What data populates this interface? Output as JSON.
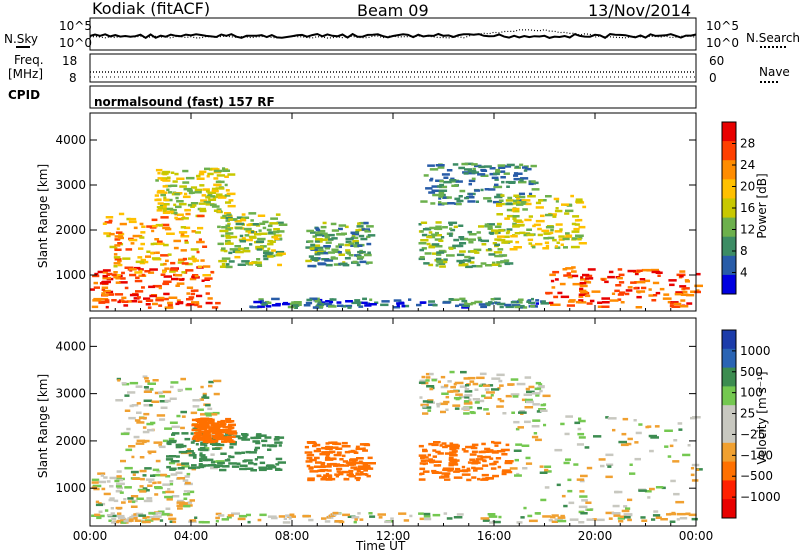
{
  "header": {
    "station": "Kodiak (fitACF)",
    "beam": "Beam 09",
    "date": "13/Nov/2014"
  },
  "panel_labels": {
    "nsky": "N.Sky",
    "nsky_ticks": [
      "10^5",
      "10^0"
    ],
    "nsearch": "N.Search",
    "nsearch_ticks": [
      "10^5",
      "10^0"
    ],
    "freq_line1": "Freq.",
    "freq_line2": "[MHz]",
    "freq_ticks": [
      "18",
      "8"
    ],
    "nave": "Nave",
    "nave_ticks": [
      "60",
      "0"
    ],
    "cpid": "CPID",
    "cpid_text": "normalsound (fast) 157 RF"
  },
  "power_colorbar": {
    "label": "Power [dB]",
    "ticks": [
      "28",
      "24",
      "20",
      "16",
      "12",
      "8",
      "4"
    ],
    "colors": [
      "#e80000",
      "#ff4000",
      "#ff8c00",
      "#ffc000",
      "#c8c800",
      "#6cb04c",
      "#3c8c64",
      "#285ca8",
      "#0000e0"
    ]
  },
  "velocity_colorbar": {
    "label": "Velocity [m s⁻¹]",
    "ticks": [
      "1000",
      "500",
      "100",
      "25",
      "−25",
      "−100",
      "−500",
      "−1000"
    ],
    "colors": [
      "#1c3caa",
      "#2a64b4",
      "#3c8c50",
      "#74c850",
      "#c8c8c0",
      "#c8c8c0",
      "#f0a030",
      "#ff7000",
      "#ff2000",
      "#e80000"
    ]
  },
  "chart_data": [
    {
      "type": "heatmap",
      "title": "Power",
      "xlabel": "Time UT",
      "ylabel": "Slant Range [km]",
      "x_ticks": [
        "00:00",
        "04:00",
        "08:00",
        "12:00",
        "16:00",
        "20:00",
        "00:00"
      ],
      "xlim_hours": [
        0,
        24
      ],
      "y_ticks": [
        "1000",
        "2000",
        "3000",
        "4000"
      ],
      "ylim": [
        200,
        4600
      ],
      "value_unit": "dB",
      "colorbar_range": [
        0,
        32
      ],
      "regions": [
        {
          "t_start": 0.0,
          "t_end": 5.0,
          "r_start": 300,
          "r_end": 1200,
          "power": 28
        },
        {
          "t_start": 0.5,
          "t_end": 4.5,
          "r_start": 1000,
          "r_end": 2400,
          "power": 22
        },
        {
          "t_start": 2.5,
          "t_end": 5.5,
          "r_start": 2400,
          "r_end": 3400,
          "power": 16
        },
        {
          "t_start": 5.0,
          "t_end": 7.5,
          "r_start": 1200,
          "r_end": 2400,
          "power": 14
        },
        {
          "t_start": 8.5,
          "t_end": 11.0,
          "r_start": 1200,
          "r_end": 2200,
          "power": 10
        },
        {
          "t_start": 13.0,
          "t_end": 17.5,
          "r_start": 2600,
          "r_end": 3500,
          "power": 8
        },
        {
          "t_start": 13.0,
          "t_end": 16.5,
          "r_start": 1200,
          "r_end": 2200,
          "power": 12
        },
        {
          "t_start": 16.0,
          "t_end": 19.5,
          "r_start": 1600,
          "r_end": 2800,
          "power": 16
        },
        {
          "t_start": 18.0,
          "t_end": 24.0,
          "r_start": 300,
          "r_end": 1200,
          "power": 28
        },
        {
          "t_start": 6.0,
          "t_end": 18.0,
          "r_start": 300,
          "r_end": 500,
          "power": 6
        }
      ]
    },
    {
      "type": "heatmap",
      "title": "Velocity",
      "xlabel": "Time UT",
      "ylabel": "Slant Range [km]",
      "x_ticks": [
        "00:00",
        "04:00",
        "08:00",
        "12:00",
        "16:00",
        "20:00",
        "00:00"
      ],
      "xlim_hours": [
        0,
        24
      ],
      "y_ticks": [
        "1000",
        "2000",
        "3000",
        "4000"
      ],
      "ylim": [
        200,
        4600
      ],
      "value_unit": "m s-1",
      "regions": [
        {
          "t_start": 0.0,
          "t_end": 4.0,
          "r_start": 300,
          "r_end": 1400,
          "velocity": 0
        },
        {
          "t_start": 1.0,
          "t_end": 5.0,
          "r_start": 1400,
          "r_end": 3400,
          "velocity": 0
        },
        {
          "t_start": 3.0,
          "t_end": 7.5,
          "r_start": 1400,
          "r_end": 2200,
          "velocity": 150
        },
        {
          "t_start": 4.0,
          "t_end": 5.5,
          "r_start": 2000,
          "r_end": 2500,
          "velocity": -300
        },
        {
          "t_start": 8.5,
          "t_end": 11.0,
          "r_start": 1200,
          "r_end": 2000,
          "velocity": -200
        },
        {
          "t_start": 13.0,
          "t_end": 16.5,
          "r_start": 1200,
          "r_end": 2000,
          "velocity": -200
        },
        {
          "t_start": 13.0,
          "t_end": 18.0,
          "r_start": 2600,
          "r_end": 3500,
          "velocity": 0
        },
        {
          "t_start": 16.5,
          "t_end": 24.0,
          "r_start": 300,
          "r_end": 2600,
          "velocity": 0
        },
        {
          "t_start": 0.0,
          "t_end": 24.0,
          "r_start": 300,
          "r_end": 500,
          "velocity": 0
        }
      ]
    }
  ]
}
